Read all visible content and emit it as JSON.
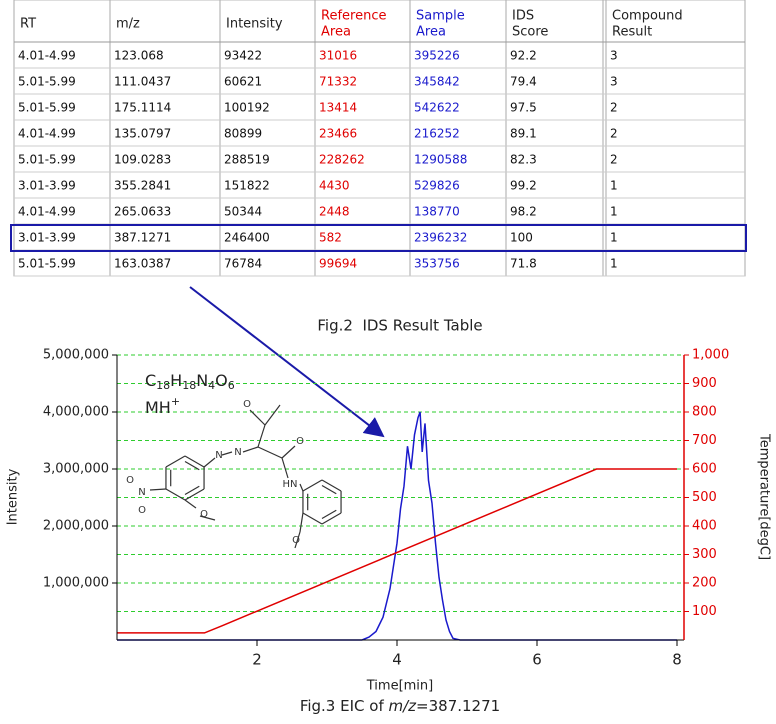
{
  "table": {
    "header": [
      [
        "RT"
      ],
      [
        "m/z"
      ],
      [
        "Intensity"
      ],
      [
        "Reference",
        "Area"
      ],
      [
        "Sample",
        "Area"
      ],
      [
        "IDS",
        "Score"
      ],
      [
        "Compound",
        "Result"
      ]
    ],
    "column_colors": [
      null,
      null,
      null,
      "#e00000",
      "#1a1acc",
      null,
      null
    ],
    "highlight_row": 7,
    "rows": [
      [
        "4.01-4.99",
        123.068,
        93422,
        31016,
        395226,
        92.2,
        3
      ],
      [
        "5.01-5.99",
        111.0437,
        60621,
        71332,
        345842,
        79.4,
        3
      ],
      [
        "5.01-5.99",
        175.1114,
        100192,
        13414,
        542622,
        97.5,
        2
      ],
      [
        "4.01-4.99",
        135.0797,
        80899,
        23466,
        216252,
        89.1,
        2
      ],
      [
        "5.01-5.99",
        109.0283,
        288519,
        228262,
        1290588,
        82.3,
        2
      ],
      [
        "3.01-3.99",
        355.2841,
        151822,
        4430,
        529826,
        99.2,
        1
      ],
      [
        "4.01-4.99",
        265.0633,
        50344,
        2448,
        138770,
        98.2,
        1
      ],
      [
        "3.01-3.99",
        387.1271,
        246400,
        582,
        2396232,
        100,
        1
      ],
      [
        "5.01-5.99",
        163.0387,
        76784,
        99694,
        353756,
        71.8,
        1
      ]
    ],
    "caption": "Fig.2  IDS Result Table"
  },
  "chart_data": {
    "type": "line",
    "caption": [
      "Fig.3 EIC of ",
      "m/z",
      "=387.1271"
    ],
    "x_label": "Time[min]",
    "y_label": "Intensity",
    "y2_label": "Temperature[degC]",
    "formula": [
      "C",
      "18",
      "H",
      "18",
      "N",
      "4",
      "O",
      "6"
    ],
    "ion": [
      "MH",
      "+"
    ],
    "structure_labels": [
      "O",
      "N",
      "N",
      "O",
      "HN",
      "O",
      "O",
      "N",
      "O",
      "O"
    ],
    "xlim": [
      0,
      8.1
    ],
    "xticks": [
      2,
      4,
      6,
      8
    ],
    "ylim": [
      0,
      5000000
    ],
    "yticks": [
      {
        "value": 1000000,
        "label": "1,000,000"
      },
      {
        "value": 2000000,
        "label": "2,000,000"
      },
      {
        "value": 3000000,
        "label": "3,000,000"
      },
      {
        "value": 4000000,
        "label": "4,000,000"
      },
      {
        "value": 5000000,
        "label": "5,000,000"
      }
    ],
    "y2lim": [
      0,
      1000
    ],
    "y2ticks": [
      100,
      200,
      300,
      400,
      500,
      600,
      700,
      800,
      900,
      {
        "value": 1000,
        "label": "1,000"
      }
    ],
    "y2_color": "#e00000",
    "grid": true,
    "grid_color": "#2ecc2e",
    "series": [
      {
        "color": "#1a1acc",
        "x": [
          0,
          3.5,
          3.6,
          3.7,
          3.8,
          3.9,
          3.95,
          4.0,
          4.05,
          4.1,
          4.15,
          4.2,
          4.25,
          4.3,
          4.33,
          4.36,
          4.4,
          4.45,
          4.5,
          4.55,
          4.6,
          4.65,
          4.7,
          4.75,
          4.8,
          4.9,
          8
        ],
        "values": [
          0,
          0,
          50000,
          150000,
          400000,
          900000,
          1300000,
          1700000,
          2300000,
          2700000,
          3400000,
          3000000,
          3600000,
          3900000,
          4000000,
          3300000,
          3800000,
          2800000,
          2400000,
          1700000,
          1100000,
          700000,
          350000,
          150000,
          30000,
          0,
          0
        ]
      },
      {
        "color": "#e00000",
        "axis": "y2",
        "x": [
          0,
          1.25,
          1.5,
          6.85,
          8
        ],
        "values": [
          25,
          25,
          50,
          600,
          600
        ]
      }
    ]
  }
}
